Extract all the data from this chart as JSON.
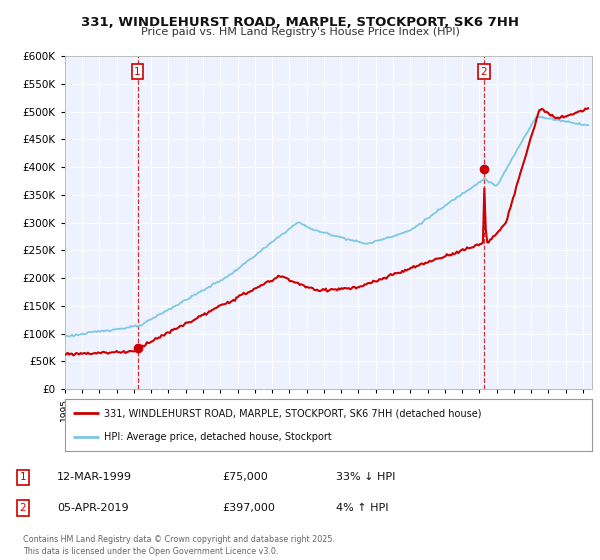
{
  "title": "331, WINDLEHURST ROAD, MARPLE, STOCKPORT, SK6 7HH",
  "subtitle": "Price paid vs. HM Land Registry's House Price Index (HPI)",
  "background_color": "#ffffff",
  "plot_background": "#eef2ff",
  "grid_color": "#ffffff",
  "hpi_color": "#7ec8e3",
  "price_color": "#cc0000",
  "sale1_date": "12-MAR-1999",
  "sale1_price": 75000,
  "sale1_label": "33% ↓ HPI",
  "sale2_date": "05-APR-2019",
  "sale2_price": 397000,
  "sale2_label": "4% ↑ HPI",
  "legend_label1": "331, WINDLEHURST ROAD, MARPLE, STOCKPORT, SK6 7HH (detached house)",
  "legend_label2": "HPI: Average price, detached house, Stockport",
  "footer": "Contains HM Land Registry data © Crown copyright and database right 2025.\nThis data is licensed under the Open Government Licence v3.0.",
  "ylim": [
    0,
    600000
  ],
  "yticks": [
    0,
    50000,
    100000,
    150000,
    200000,
    250000,
    300000,
    350000,
    400000,
    450000,
    500000,
    550000,
    600000
  ]
}
